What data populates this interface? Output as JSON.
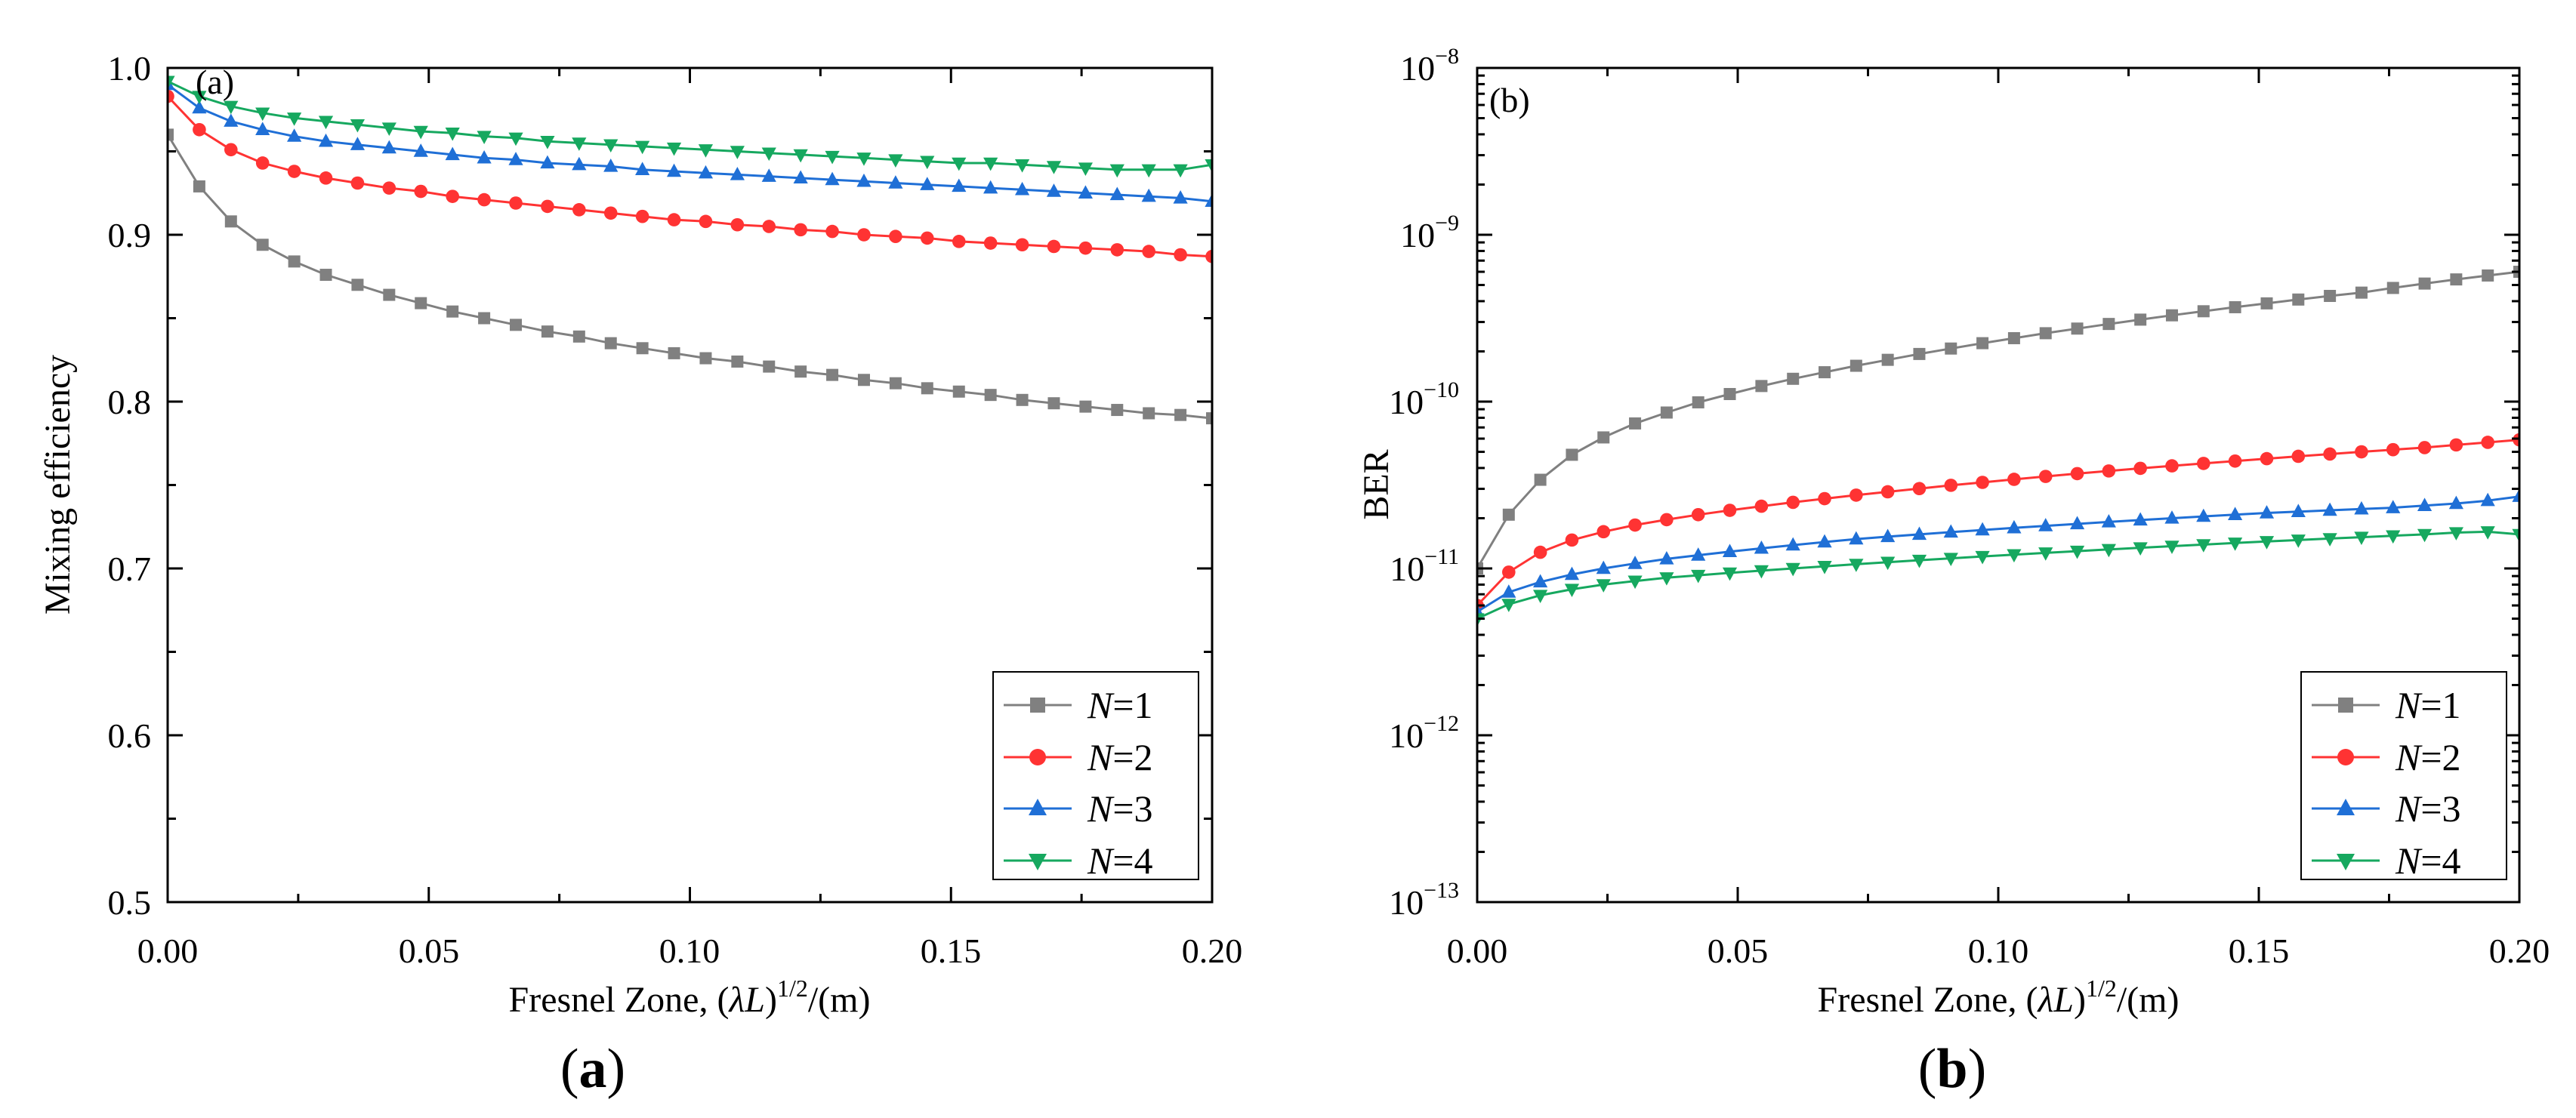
{
  "figure": {
    "caption_a_open": "(",
    "caption_a_letter": "a",
    "caption_a_close": ")",
    "caption_b_open": "(",
    "caption_b_letter": "b",
    "caption_b_close": ")"
  },
  "colors": {
    "N1": "#808080",
    "N2": "#ff3333",
    "N3": "#1f6fd6",
    "N4": "#16a85f"
  },
  "chart_data": [
    {
      "type": "line",
      "panel_label": "(a)",
      "title": "",
      "xlabel_prefix": "Fresnel Zone, (",
      "xlabel_lambda": "λ",
      "xlabel_L": "L",
      "xlabel_close": ")",
      "xlabel_exp": "1/2",
      "xlabel_suffix": "/(m)",
      "ylabel": "Mixing efficiency",
      "xlim": [
        0,
        0.2
      ],
      "ylim": [
        0.5,
        1.0
      ],
      "xscale": "linear",
      "yscale": "linear",
      "xticks": [
        0.0,
        0.05,
        0.1,
        0.15,
        0.2
      ],
      "xtick_labels": [
        "0.00",
        "0.05",
        "0.10",
        "0.15",
        "0.20"
      ],
      "yticks": [
        0.5,
        0.6,
        0.7,
        0.8,
        0.9,
        1.0
      ],
      "ytick_labels": [
        "0.5",
        "0.6",
        "0.7",
        "0.8",
        "0.9",
        "1.0"
      ],
      "legend_position": "bottom-right",
      "x": [
        0,
        0.00606,
        0.01212,
        0.01818,
        0.02424,
        0.0303,
        0.03636,
        0.04242,
        0.04848,
        0.05455,
        0.06061,
        0.06667,
        0.07273,
        0.07879,
        0.08485,
        0.09091,
        0.09697,
        0.10303,
        0.10909,
        0.11515,
        0.12121,
        0.12727,
        0.13333,
        0.13939,
        0.14545,
        0.15152,
        0.15758,
        0.16364,
        0.1697,
        0.17576,
        0.18182,
        0.18788,
        0.19394,
        0.2
      ],
      "series": [
        {
          "name": "N=1",
          "marker": "square",
          "color": "#808080",
          "values": [
            0.96,
            0.929,
            0.908,
            0.894,
            0.884,
            0.876,
            0.87,
            0.864,
            0.859,
            0.854,
            0.85,
            0.846,
            0.842,
            0.839,
            0.835,
            0.832,
            0.829,
            0.826,
            0.824,
            0.821,
            0.818,
            0.816,
            0.813,
            0.811,
            0.808,
            0.806,
            0.804,
            0.801,
            0.799,
            0.797,
            0.795,
            0.793,
            0.792,
            0.79
          ]
        },
        {
          "name": "N=2",
          "marker": "circle",
          "color": "#ff3333",
          "values": [
            0.983,
            0.963,
            0.951,
            0.943,
            0.938,
            0.934,
            0.931,
            0.928,
            0.926,
            0.923,
            0.921,
            0.919,
            0.917,
            0.915,
            0.913,
            0.911,
            0.909,
            0.908,
            0.906,
            0.905,
            0.903,
            0.902,
            0.9,
            0.899,
            0.898,
            0.896,
            0.895,
            0.894,
            0.893,
            0.892,
            0.891,
            0.89,
            0.888,
            0.887
          ]
        },
        {
          "name": "N=3",
          "marker": "triangle-up",
          "color": "#1f6fd6",
          "values": [
            0.99,
            0.976,
            0.968,
            0.963,
            0.959,
            0.956,
            0.954,
            0.952,
            0.95,
            0.948,
            0.946,
            0.945,
            0.943,
            0.942,
            0.941,
            0.939,
            0.938,
            0.937,
            0.936,
            0.935,
            0.934,
            0.933,
            0.932,
            0.931,
            0.93,
            0.929,
            0.928,
            0.927,
            0.926,
            0.925,
            0.924,
            0.923,
            0.922,
            0.92
          ]
        },
        {
          "name": "N=4",
          "marker": "triangle-down",
          "color": "#16a85f",
          "values": [
            0.992,
            0.983,
            0.977,
            0.973,
            0.97,
            0.968,
            0.966,
            0.964,
            0.962,
            0.961,
            0.959,
            0.958,
            0.956,
            0.955,
            0.954,
            0.953,
            0.952,
            0.951,
            0.95,
            0.949,
            0.948,
            0.947,
            0.946,
            0.945,
            0.944,
            0.943,
            0.943,
            0.942,
            0.941,
            0.94,
            0.939,
            0.939,
            0.939,
            0.942
          ]
        }
      ]
    },
    {
      "type": "line",
      "panel_label": "(b)",
      "title": "",
      "xlabel_prefix": "Fresnel Zone, (",
      "xlabel_lambda": "λ",
      "xlabel_L": "L",
      "xlabel_close": ")",
      "xlabel_exp": "1/2",
      "xlabel_suffix": "/(m)",
      "ylabel": "BER",
      "xlim": [
        0,
        0.2
      ],
      "ylim": [
        1e-13,
        1e-08
      ],
      "xscale": "linear",
      "yscale": "log",
      "xticks": [
        0.0,
        0.05,
        0.1,
        0.15,
        0.2
      ],
      "xtick_labels": [
        "0.00",
        "0.05",
        "0.10",
        "0.15",
        "0.20"
      ],
      "yticks_exponent": [
        -13,
        -12,
        -11,
        -10,
        -9,
        -8
      ],
      "ytick_base": "10",
      "ytick_exps": [
        "−13",
        "−12",
        "−11",
        "−10",
        "−9",
        "−8"
      ],
      "legend_position": "bottom-right",
      "x": [
        0,
        0.00606,
        0.01212,
        0.01818,
        0.02424,
        0.0303,
        0.03636,
        0.04242,
        0.04848,
        0.05455,
        0.06061,
        0.06667,
        0.07273,
        0.07879,
        0.08485,
        0.09091,
        0.09697,
        0.10303,
        0.10909,
        0.11515,
        0.12121,
        0.12727,
        0.13333,
        0.13939,
        0.14545,
        0.15152,
        0.15758,
        0.16364,
        0.1697,
        0.17576,
        0.18182,
        0.18788,
        0.19394,
        0.2
      ],
      "series": [
        {
          "name": "N=1",
          "marker": "square",
          "color": "#808080",
          "values": [
            1e-11,
            2.1e-11,
            3.4e-11,
            4.8e-11,
            6.1e-11,
            7.4e-11,
            8.6e-11,
            9.9e-11,
            1.11e-10,
            1.24e-10,
            1.37e-10,
            1.5e-10,
            1.64e-10,
            1.78e-10,
            1.93e-10,
            2.08e-10,
            2.24e-10,
            2.4e-10,
            2.57e-10,
            2.74e-10,
            2.92e-10,
            3.1e-10,
            3.29e-10,
            3.48e-10,
            3.68e-10,
            3.88e-10,
            4.09e-10,
            4.3e-10,
            4.5e-10,
            4.8e-10,
            5.1e-10,
            5.4e-10,
            5.7e-10,
            6e-10
          ]
        },
        {
          "name": "N=2",
          "marker": "circle",
          "color": "#ff3333",
          "values": [
            6e-12,
            9.5e-12,
            1.25e-11,
            1.48e-11,
            1.66e-11,
            1.82e-11,
            1.96e-11,
            2.1e-11,
            2.23e-11,
            2.36e-11,
            2.49e-11,
            2.62e-11,
            2.75e-11,
            2.88e-11,
            3.01e-11,
            3.15e-11,
            3.28e-11,
            3.42e-11,
            3.56e-11,
            3.7e-11,
            3.84e-11,
            3.98e-11,
            4.12e-11,
            4.26e-11,
            4.4e-11,
            4.55e-11,
            4.7e-11,
            4.85e-11,
            5e-11,
            5.15e-11,
            5.3e-11,
            5.5e-11,
            5.7e-11,
            5.9e-11
          ]
        },
        {
          "name": "N=3",
          "marker": "triangle-up",
          "color": "#1f6fd6",
          "values": [
            5.5e-12,
            7.2e-12,
            8.3e-12,
            9.2e-12,
            1e-11,
            1.07e-11,
            1.14e-11,
            1.2e-11,
            1.26e-11,
            1.32e-11,
            1.38e-11,
            1.44e-11,
            1.5e-11,
            1.55e-11,
            1.6e-11,
            1.65e-11,
            1.7e-11,
            1.75e-11,
            1.8e-11,
            1.85e-11,
            1.9e-11,
            1.95e-11,
            2e-11,
            2.05e-11,
            2.1e-11,
            2.15e-11,
            2.19e-11,
            2.23e-11,
            2.27e-11,
            2.31e-11,
            2.38e-11,
            2.45e-11,
            2.55e-11,
            2.7e-11
          ]
        },
        {
          "name": "N=4",
          "marker": "triangle-down",
          "color": "#16a85f",
          "values": [
            5e-12,
            6.1e-12,
            6.9e-12,
            7.5e-12,
            8e-12,
            8.4e-12,
            8.8e-12,
            9.1e-12,
            9.4e-12,
            9.7e-12,
            1e-11,
            1.03e-11,
            1.06e-11,
            1.09e-11,
            1.12e-11,
            1.15e-11,
            1.18e-11,
            1.21e-11,
            1.24e-11,
            1.27e-11,
            1.3e-11,
            1.33e-11,
            1.36e-11,
            1.39e-11,
            1.42e-11,
            1.45e-11,
            1.48e-11,
            1.51e-11,
            1.54e-11,
            1.57e-11,
            1.6e-11,
            1.64e-11,
            1.66e-11,
            1.6e-11
          ]
        }
      ]
    }
  ]
}
